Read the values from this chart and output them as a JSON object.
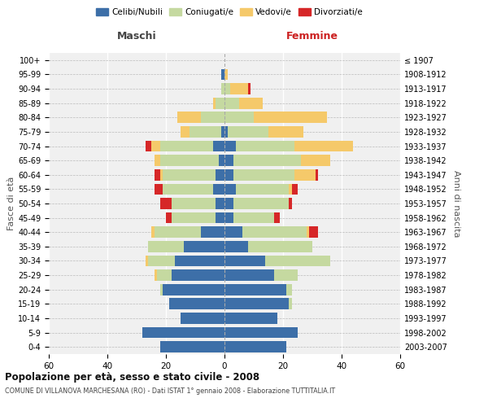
{
  "age_groups": [
    "0-4",
    "5-9",
    "10-14",
    "15-19",
    "20-24",
    "25-29",
    "30-34",
    "35-39",
    "40-44",
    "45-49",
    "50-54",
    "55-59",
    "60-64",
    "65-69",
    "70-74",
    "75-79",
    "80-84",
    "85-89",
    "90-94",
    "95-99",
    "100+"
  ],
  "birth_years": [
    "2003-2007",
    "1998-2002",
    "1993-1997",
    "1988-1992",
    "1983-1987",
    "1978-1982",
    "1973-1977",
    "1968-1972",
    "1963-1967",
    "1958-1962",
    "1953-1957",
    "1948-1952",
    "1943-1947",
    "1938-1942",
    "1933-1937",
    "1928-1932",
    "1923-1927",
    "1918-1922",
    "1913-1917",
    "1908-1912",
    "≤ 1907"
  ],
  "males": {
    "celibi": [
      22,
      28,
      15,
      19,
      21,
      18,
      17,
      14,
      8,
      3,
      3,
      4,
      3,
      2,
      4,
      1,
      0,
      0,
      0,
      1,
      0
    ],
    "coniugati": [
      0,
      0,
      0,
      0,
      1,
      5,
      9,
      12,
      16,
      15,
      15,
      17,
      18,
      20,
      18,
      11,
      8,
      3,
      1,
      0,
      0
    ],
    "vedovi": [
      0,
      0,
      0,
      0,
      0,
      1,
      1,
      0,
      1,
      0,
      0,
      0,
      1,
      2,
      3,
      3,
      8,
      1,
      0,
      0,
      0
    ],
    "divorziati": [
      0,
      0,
      0,
      0,
      0,
      0,
      0,
      0,
      0,
      2,
      4,
      3,
      2,
      0,
      2,
      0,
      0,
      0,
      0,
      0,
      0
    ]
  },
  "females": {
    "nubili": [
      21,
      25,
      18,
      22,
      21,
      17,
      14,
      8,
      6,
      3,
      3,
      4,
      3,
      3,
      4,
      1,
      0,
      0,
      0,
      0,
      0
    ],
    "coniugate": [
      0,
      0,
      0,
      1,
      2,
      8,
      22,
      22,
      22,
      14,
      19,
      18,
      21,
      23,
      20,
      14,
      10,
      5,
      2,
      0,
      0
    ],
    "vedove": [
      0,
      0,
      0,
      0,
      0,
      0,
      0,
      0,
      1,
      0,
      0,
      1,
      7,
      10,
      20,
      12,
      25,
      8,
      6,
      1,
      0
    ],
    "divorziate": [
      0,
      0,
      0,
      0,
      0,
      0,
      0,
      0,
      3,
      2,
      1,
      2,
      1,
      0,
      0,
      0,
      0,
      0,
      1,
      0,
      0
    ]
  },
  "colors": {
    "celibi": "#3d6fa8",
    "coniugati": "#c5d9a0",
    "vedovi": "#f5c96a",
    "divorziati": "#d62728"
  },
  "title": "Popolazione per età, sesso e stato civile - 2008",
  "subtitle": "COMUNE DI VILLANOVA MARCHESANA (RO) - Dati ISTAT 1° gennaio 2008 - Elaborazione TUTTITALIA.IT",
  "xlabel_left": "Maschi",
  "xlabel_right": "Femmine",
  "ylabel_left": "Fasce di età",
  "ylabel_right": "Anni di nascita",
  "xlim": 60,
  "legend_labels": [
    "Celibi/Nubili",
    "Coniugati/e",
    "Vedovi/e",
    "Divorziati/e"
  ],
  "bg_color": "#f0f0f0"
}
